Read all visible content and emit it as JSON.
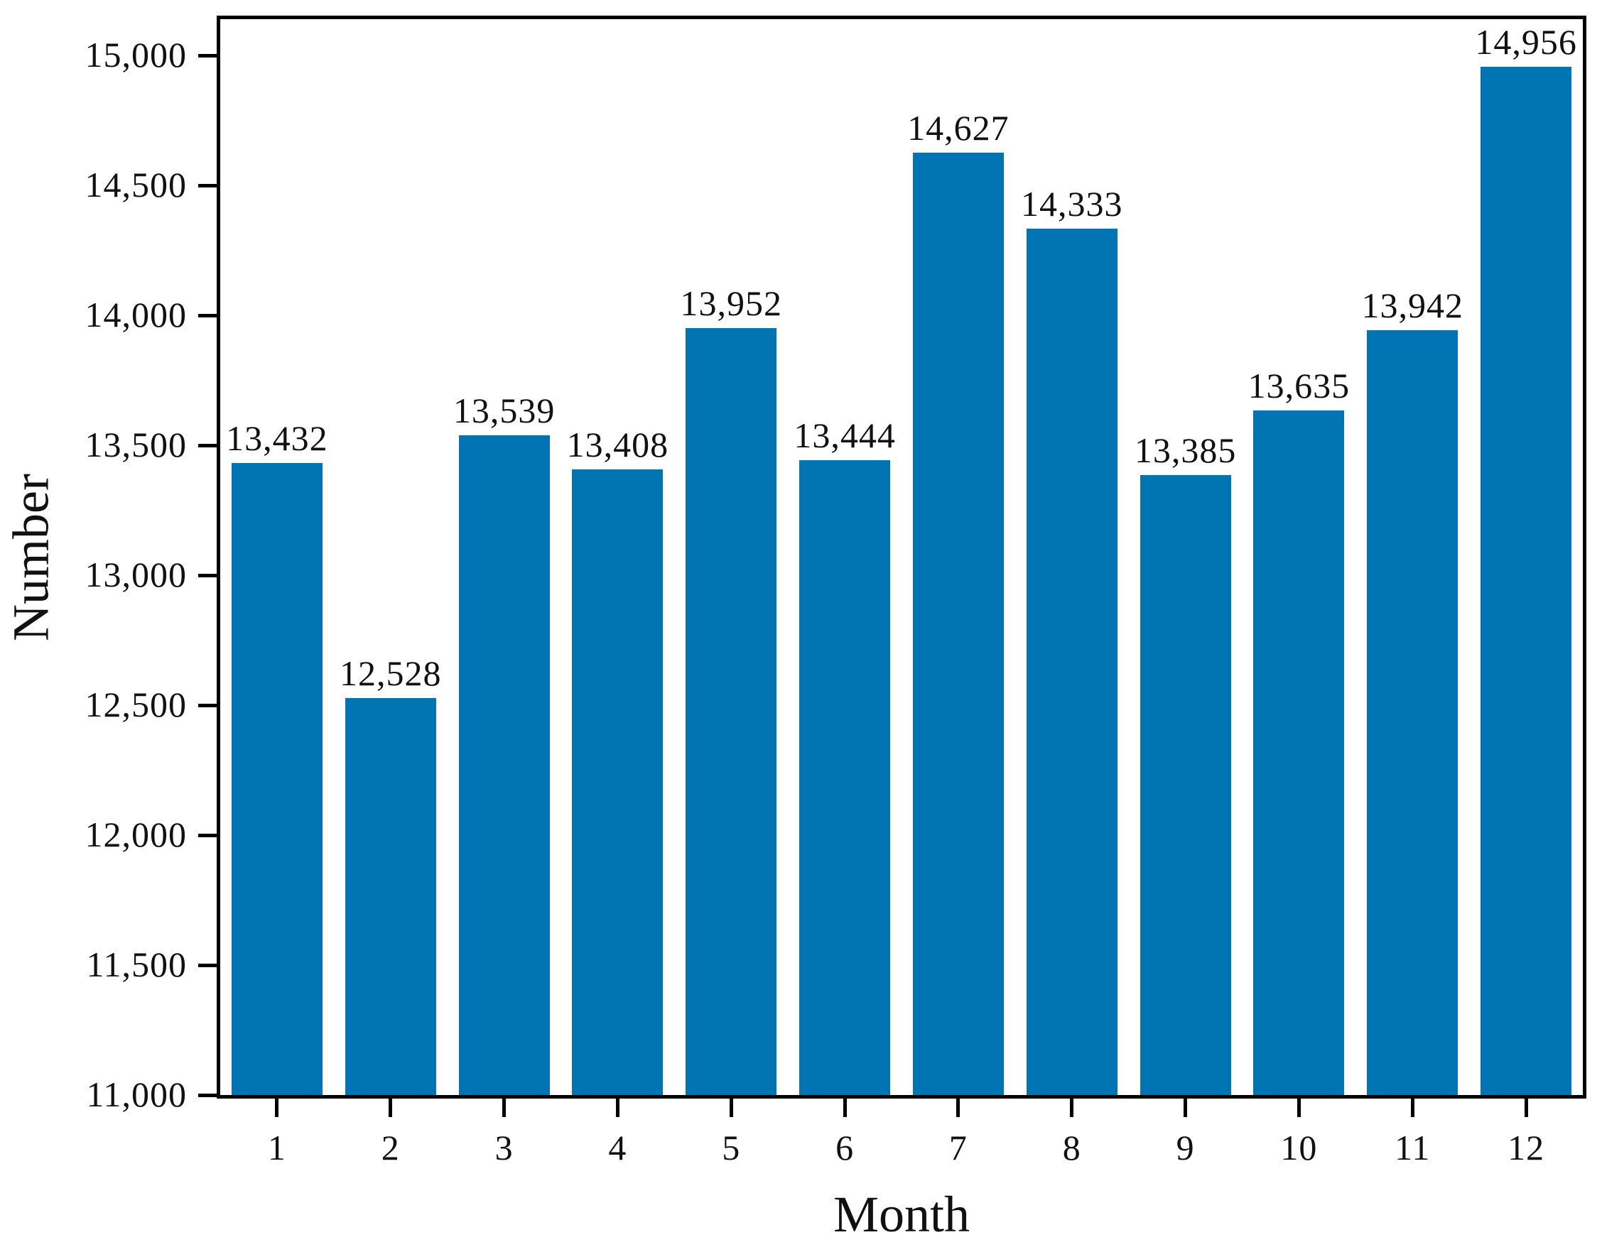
{
  "chart_data": {
    "type": "bar",
    "title": "",
    "xlabel": "Month",
    "ylabel": "Number",
    "categories": [
      "1",
      "2",
      "3",
      "4",
      "5",
      "6",
      "7",
      "8",
      "9",
      "10",
      "11",
      "12"
    ],
    "values": [
      13432,
      12528,
      13539,
      13408,
      13952,
      13444,
      14627,
      14333,
      13385,
      13635,
      13942,
      14956
    ],
    "value_labels": [
      "13,432",
      "12,528",
      "13,539",
      "13,408",
      "13,952",
      "13,444",
      "14,627",
      "14,333",
      "13,385",
      "13,635",
      "13,942",
      "14,956"
    ],
    "y_ticks": [
      {
        "value": 11000,
        "label": "11,000"
      },
      {
        "value": 11500,
        "label": "11,500"
      },
      {
        "value": 12000,
        "label": "12,000"
      },
      {
        "value": 12500,
        "label": "12,500"
      },
      {
        "value": 13000,
        "label": "13,000"
      },
      {
        "value": 13500,
        "label": "13,500"
      },
      {
        "value": 14000,
        "label": "14,000"
      },
      {
        "value": 14500,
        "label": "14,500"
      },
      {
        "value": 15000,
        "label": "15,000"
      }
    ],
    "ylim": [
      11000,
      15140
    ],
    "bar_width_ratio": 0.8,
    "grid": false,
    "legend": null,
    "colors": {
      "bar": "#0175b4",
      "axis": "#000000",
      "text": "#111111",
      "background": "#ffffff"
    }
  }
}
